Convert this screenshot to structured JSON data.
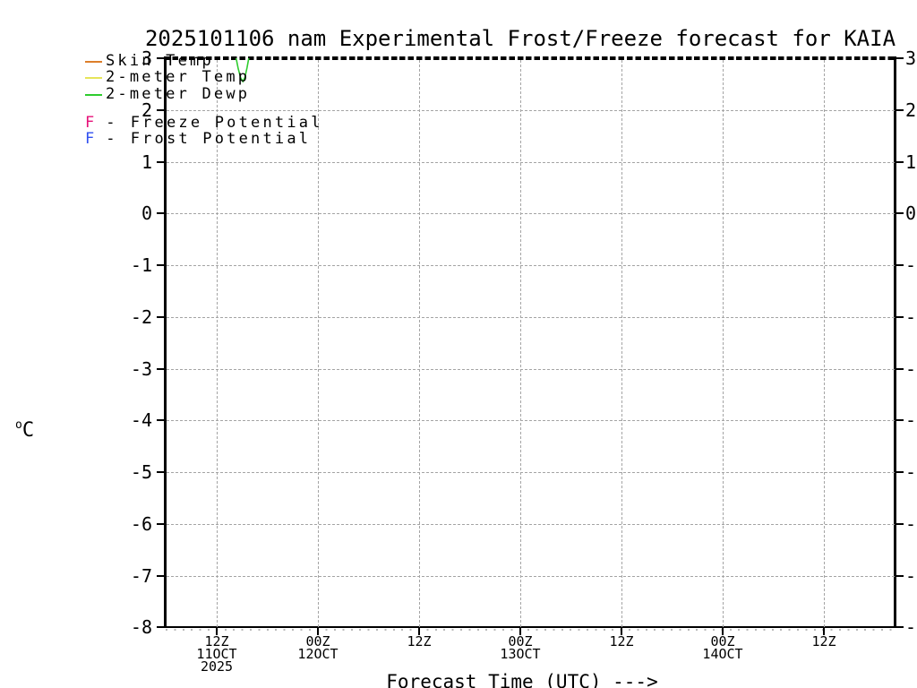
{
  "title": "2025101106 nam Experimental Frost/Freeze forecast for KAIA",
  "y_axis": {
    "unit_sup": "o",
    "unit_base": "C",
    "ticks": [
      3,
      2,
      1,
      0,
      -1,
      -2,
      -3,
      -4,
      -5,
      -6,
      -7,
      -8
    ]
  },
  "x_axis": {
    "caption": "Forecast Time (UTC) --->",
    "ticks": [
      {
        "hours": 6,
        "lines": [
          "12Z",
          "11OCT",
          "2025"
        ]
      },
      {
        "hours": 18,
        "lines": [
          "00Z",
          "12OCT"
        ]
      },
      {
        "hours": 30,
        "lines": [
          "12Z"
        ]
      },
      {
        "hours": 42,
        "lines": [
          "00Z",
          "13OCT"
        ]
      },
      {
        "hours": 54,
        "lines": [
          "12Z"
        ]
      },
      {
        "hours": 66,
        "lines": [
          "00Z",
          "14OCT"
        ]
      },
      {
        "hours": 78,
        "lines": [
          "12Z"
        ]
      }
    ]
  },
  "legend": {
    "lines": [
      {
        "label": "Skin Temp",
        "color": "#dd7e2a"
      },
      {
        "label": "2-meter Temp",
        "color": "#e6e45a"
      },
      {
        "label": "2-meter Dewp",
        "color": "#2ecc2e"
      }
    ],
    "flags": [
      {
        "symbol": "F",
        "separator": "-",
        "label": "Freeze Potential",
        "color": "#e61078"
      },
      {
        "symbol": "F",
        "separator": "-",
        "label": "Frost Potential",
        "color": "#3050f0"
      }
    ]
  },
  "chart_data": {
    "type": "line",
    "title": "2025101106 nam Experimental Frost/Freeze forecast for KAIA",
    "xlabel": "Forecast Time (UTC) --->",
    "ylabel": "°C",
    "ylim": [
      -8,
      3
    ],
    "x_axis_hours_after_2025-10-11_06Z": [
      0,
      86
    ],
    "grid": true,
    "legend_position": "top-left",
    "series": [
      {
        "name": "Skin Temp",
        "color": "#dd7e2a",
        "visible_points": [],
        "note": "no points visible inside plotted range (series above +3C)"
      },
      {
        "name": "2-meter Temp",
        "color": "#e6e45a",
        "visible_points": [],
        "note": "no points visible inside plotted range (series above +3C)"
      },
      {
        "name": "2-meter Dewp",
        "color": "#2ecc2e",
        "visible_points": [
          {
            "hours": 8.3,
            "c": 3.0
          },
          {
            "hours": 8.55,
            "c": 2.8
          },
          {
            "hours": 8.85,
            "c": 2.62
          },
          {
            "hours": 9.1,
            "c": 2.55
          },
          {
            "hours": 9.35,
            "c": 2.63
          },
          {
            "hours": 9.6,
            "c": 2.82
          },
          {
            "hours": 9.8,
            "c": 3.0
          }
        ],
        "note": "brief dip below +3C near 15Z 11 Oct; remainder above plotted range"
      }
    ],
    "markers": [
      {
        "symbol": "F",
        "color": "#e61078",
        "meaning": "Freeze Potential",
        "occurrences_visible": 0
      },
      {
        "symbol": "F",
        "color": "#3050f0",
        "meaning": "Frost Potential",
        "occurrences_visible": 0
      }
    ]
  }
}
